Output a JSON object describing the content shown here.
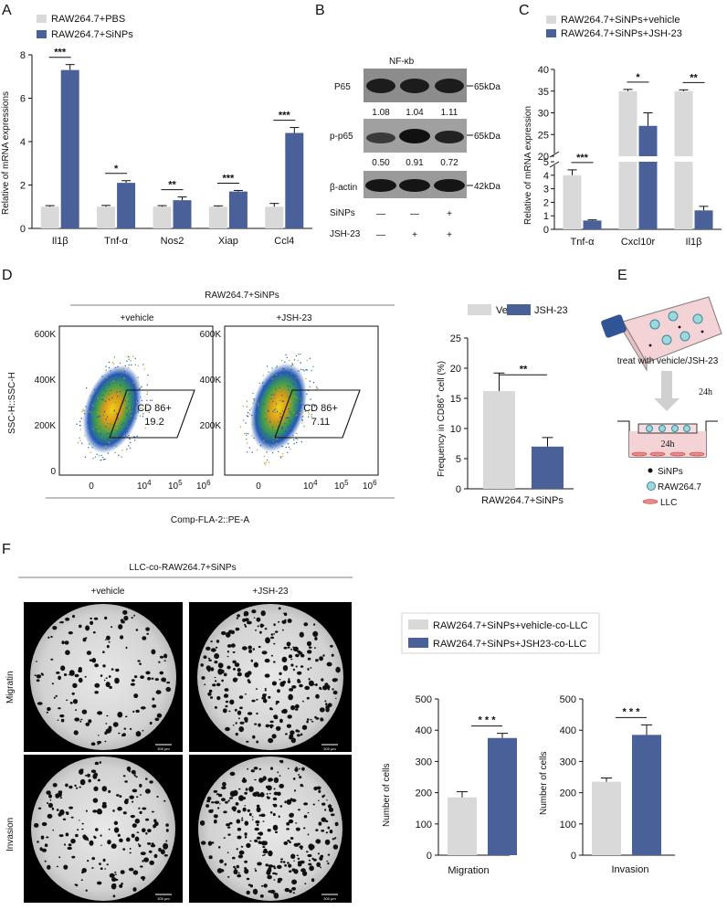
{
  "colors": {
    "grey": "#d9d9d9",
    "blue": "#4a6098",
    "dark": "#111111"
  },
  "panel_labels": {
    "a": "A",
    "b": "B",
    "c": "C",
    "d": "D",
    "e": "E",
    "f": "F"
  },
  "chart_data": [
    {
      "id": "A",
      "type": "bar",
      "categories": [
        "Il1β",
        "Tnf-α",
        "Nos2",
        "Xiap",
        "Ccl4"
      ],
      "series": [
        {
          "name": "RAW264.7+PBS",
          "values": [
            1.0,
            1.0,
            1.0,
            1.0,
            1.0
          ],
          "errors": [
            0.05,
            0.06,
            0.05,
            0.04,
            0.15
          ]
        },
        {
          "name": "RAW264.7+SiNPs",
          "values": [
            7.3,
            2.1,
            1.3,
            1.7,
            4.4
          ],
          "errors": [
            0.25,
            0.1,
            0.15,
            0.05,
            0.25
          ]
        }
      ],
      "significance": [
        "***",
        "*",
        "**",
        "***",
        "***"
      ],
      "ylabel": "Relative of mRNA expressions",
      "ylim": [
        0,
        8
      ],
      "yticks": [
        "0",
        "2",
        "4",
        "6",
        "8"
      ]
    },
    {
      "id": "C",
      "type": "bar",
      "categories": [
        "Tnf-α",
        "Cxcl10r",
        "Il1β"
      ],
      "series": [
        {
          "name": "RAW264.7+SiNPs+vehicle",
          "values": [
            4.0,
            35.0,
            35.0
          ],
          "errors": [
            0.4,
            0.4,
            0.3
          ]
        },
        {
          "name": "RAW264.7+SiNPs+JSH-23",
          "values": [
            0.65,
            27.0,
            1.4
          ],
          "errors": [
            0.05,
            3.0,
            0.3
          ]
        }
      ],
      "significance": [
        "***",
        "*",
        "**"
      ],
      "ylabel": "Relative of mRNA expression",
      "axis_break": [
        5,
        20
      ],
      "ylim": [
        0,
        40
      ],
      "yticks": [
        "0",
        "1",
        "2",
        "3",
        "4",
        "5",
        "20",
        "25",
        "30",
        "35",
        "40"
      ]
    },
    {
      "id": "D",
      "type": "bar",
      "categories": [
        "Vehicle",
        "JSH-23"
      ],
      "series": [
        {
          "name": "Frequency in CD86+ cell (%)",
          "values": [
            16.2,
            7.0
          ],
          "errors": [
            3.0,
            1.5
          ]
        }
      ],
      "significance": [
        "**"
      ],
      "ylabel": "Frequency in CD86",
      "ylabel_sup": "+",
      "ylabel_tail": " cell (%)",
      "xlabel": "RAW264.7+SiNPs",
      "ylim": [
        0,
        25
      ],
      "yticks": [
        "0",
        "5",
        "10",
        "15",
        "20",
        "25"
      ],
      "legend": [
        "Vehicle",
        "JSH-23"
      ]
    },
    {
      "id": "F-migration",
      "type": "bar",
      "categories": [
        "RAW264.7+SiNPs+vehicle-co-LLC",
        "RAW264.7+SiNPs+JSH23-co-LLC"
      ],
      "series": [
        {
          "name": "Migration",
          "values": [
            185,
            375
          ],
          "errors": [
            18,
            15
          ]
        }
      ],
      "significance": [
        "* * *"
      ],
      "ylabel": "Number of cells",
      "xlabel": "Migration",
      "ylim": [
        0,
        500
      ],
      "yticks": [
        "0",
        "100",
        "200",
        "300",
        "400",
        "500"
      ]
    },
    {
      "id": "F-invasion",
      "type": "bar",
      "categories": [
        "RAW264.7+SiNPs+vehicle-co-LLC",
        "RAW264.7+SiNPs+JSH23-co-LLC"
      ],
      "series": [
        {
          "name": "Invasion",
          "values": [
            235,
            385
          ],
          "errors": [
            12,
            32
          ]
        }
      ],
      "significance": [
        "* * *"
      ],
      "ylabel": "Number of cells",
      "xlabel": "Invasion",
      "ylim": [
        0,
        500
      ],
      "yticks": [
        "0",
        "100",
        "200",
        "300",
        "400",
        "500"
      ]
    }
  ],
  "panel_f_legend": [
    "RAW264.7+SiNPs+vehicle-co-LLC",
    "RAW264.7+SiNPs+JSH23-co-LLC"
  ],
  "blot": {
    "title": "NF-κb",
    "rows": [
      {
        "label": "P65",
        "size": "65kDa",
        "quant": [
          "1.08",
          "1.04",
          "1.11"
        ]
      },
      {
        "label": "p-p65",
        "size": "65kDa",
        "quant": [
          "0.50",
          "0.91",
          "0.72"
        ]
      },
      {
        "label": "β-actin",
        "size": "42kDa"
      }
    ],
    "treatments": [
      {
        "label": "SiNPs",
        "marks": [
          "—",
          "—",
          "+"
        ]
      },
      {
        "label": "JSH-23",
        "marks": [
          "—",
          "+",
          "+"
        ]
      }
    ]
  },
  "flow": {
    "title": "RAW264.7+SiNPs",
    "columns": [
      "+vehicle",
      "+JSH-23"
    ],
    "ylabel": "SSC-H::SSC-H",
    "xlabel": "Comp-FLA-2::PE-A",
    "yticks": [
      "0",
      "200K",
      "400K",
      "600K"
    ],
    "xticks": [
      "0",
      "10",
      "10",
      "10"
    ],
    "xtick_exps": [
      "4",
      "5",
      "6"
    ],
    "gate_name": "CD 86+",
    "gate_values": [
      "19.2",
      "7.11"
    ]
  },
  "schematic": {
    "caption": "treat with vehicle/JSH-23",
    "time1": "24h",
    "time2": "24h",
    "legend": [
      "SiNPs",
      "RAW264.7",
      "LLC"
    ]
  },
  "micro": {
    "title": "LLC-co-RAW264.7+SiNPs",
    "columns": [
      "+vehicle",
      "+JSH-23"
    ],
    "rows": [
      "Migratin",
      "Invasion"
    ],
    "scale": "300 μm"
  }
}
